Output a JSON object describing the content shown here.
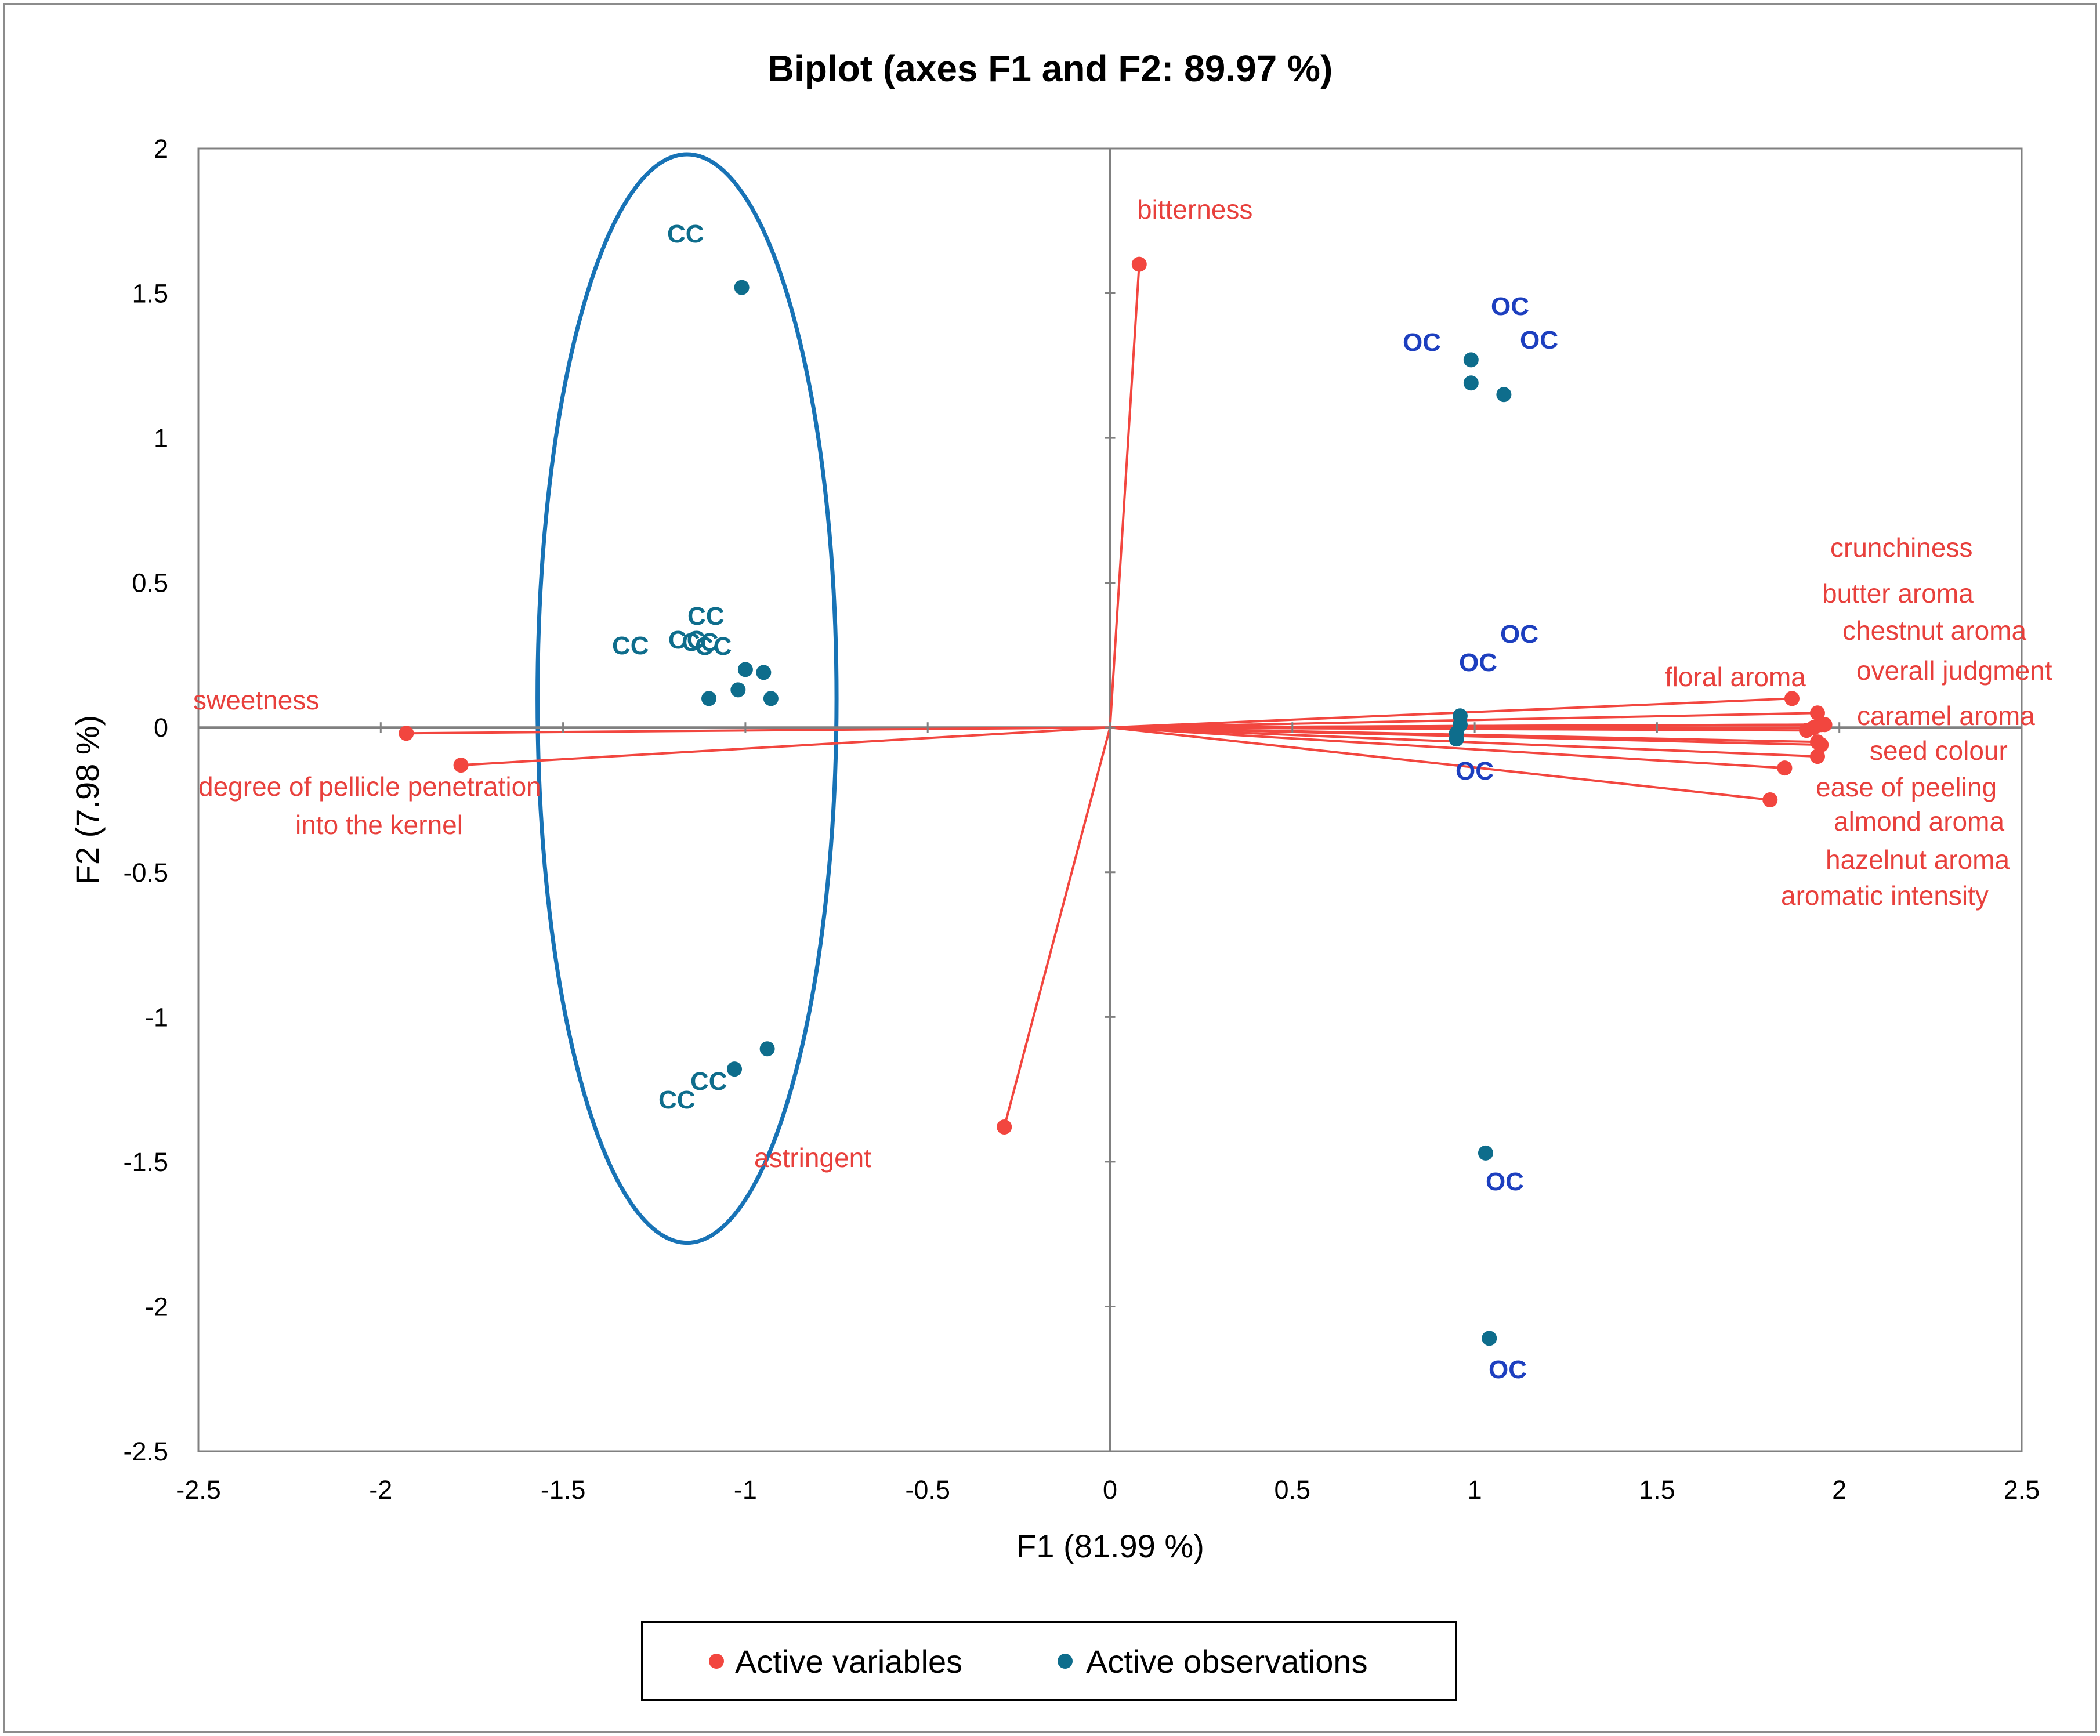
{
  "chart_data": {
    "type": "scatter",
    "subtype": "biplot",
    "title": "Biplot (axes F1 and F2: 89.97 %)",
    "xlabel": "F1 (81.99 %)",
    "ylabel": "F2 (7.98 %)",
    "xlim": [
      -2.5,
      2.5
    ],
    "ylim": [
      -2.5,
      2
    ],
    "x_ticks": [
      "-2.5",
      "-2",
      "-1.5",
      "-1",
      "-0.5",
      "0",
      "0.5",
      "1",
      "1.5",
      "2",
      "2.5"
    ],
    "y_ticks": [
      "2",
      "1.5",
      "1",
      "0.5",
      "0",
      "-0.5",
      "-1",
      "-1.5",
      "-2",
      "-2.5"
    ],
    "grid": false,
    "legend": {
      "position": "bottom",
      "entries": [
        {
          "label": "Active variables",
          "color": "#f2463f"
        },
        {
          "label": "Active observations",
          "color": "#0e6d8c"
        }
      ]
    },
    "variables": [
      {
        "name": "bitterness",
        "x": 0.08,
        "y": 1.6
      },
      {
        "name": "crunchiness",
        "x": 1.96,
        "y": 0.01
      },
      {
        "name": "butter aroma",
        "x": 1.95,
        "y": 0.01
      },
      {
        "name": "chestnut aroma",
        "x": 1.94,
        "y": 0.05
      },
      {
        "name": "floral aroma",
        "x": 1.87,
        "y": 0.1
      },
      {
        "name": "overall judgment",
        "x": 1.93,
        "y": 0.0
      },
      {
        "name": "caramel aroma",
        "x": 1.91,
        "y": -0.01
      },
      {
        "name": "seed colour",
        "x": 1.94,
        "y": -0.1
      },
      {
        "name": "ease of peeling",
        "x": 1.85,
        "y": -0.14
      },
      {
        "name": "almond aroma",
        "x": 1.95,
        "y": -0.06
      },
      {
        "name": "hazelnut aroma",
        "x": 1.94,
        "y": -0.05
      },
      {
        "name": "aromatic intensity",
        "x": 1.81,
        "y": -0.25
      },
      {
        "name": "sweetness",
        "x": -1.93,
        "y": -0.02
      },
      {
        "name": "degree of pellicle penetration into the kernel",
        "x": -1.78,
        "y": -0.13
      },
      {
        "name": "astringent",
        "x": -0.29,
        "y": -1.38
      }
    ],
    "observations": [
      {
        "label": "CC",
        "x": -1.01,
        "y": 1.52
      },
      {
        "label": "CC",
        "x": -1.0,
        "y": 0.2
      },
      {
        "label": "CC",
        "x": -0.95,
        "y": 0.19
      },
      {
        "label": "CC",
        "x": -1.02,
        "y": 0.13
      },
      {
        "label": "CC",
        "x": -1.1,
        "y": 0.1
      },
      {
        "label": "CC",
        "x": -0.93,
        "y": 0.1
      },
      {
        "label": "CC",
        "x": -1.03,
        "y": -1.18
      },
      {
        "label": "CC",
        "x": -0.94,
        "y": -1.11
      },
      {
        "label": "OC",
        "x": 0.99,
        "y": 1.27
      },
      {
        "label": "OC",
        "x": 0.99,
        "y": 1.19
      },
      {
        "label": "OC",
        "x": 1.08,
        "y": 1.15
      },
      {
        "label": "OC",
        "x": 0.96,
        "y": 0.04
      },
      {
        "label": "OC",
        "x": 0.96,
        "y": 0.01
      },
      {
        "label": "OC",
        "x": 0.95,
        "y": -0.02
      },
      {
        "label": "OC",
        "x": 0.95,
        "y": -0.04
      },
      {
        "label": "OC",
        "x": 1.03,
        "y": -1.47
      },
      {
        "label": "OC",
        "x": 1.04,
        "y": -2.11
      }
    ],
    "annotations": [
      {
        "type": "ellipse",
        "description": "group of CC observations",
        "center": [
          -1.16,
          0.1
        ],
        "radius_x": 0.41,
        "radius_y": 1.88,
        "color": "#1873b6"
      }
    ],
    "colors": {
      "variables": "#f2463f",
      "variable_labels": "#e8403c",
      "observations": "#0e6d8c",
      "cc_labels": "#0e6d8c",
      "oc_labels": "#1d3fbf",
      "ellipse": "#1873b6",
      "axis": "#808080",
      "frame": "#000000"
    }
  }
}
